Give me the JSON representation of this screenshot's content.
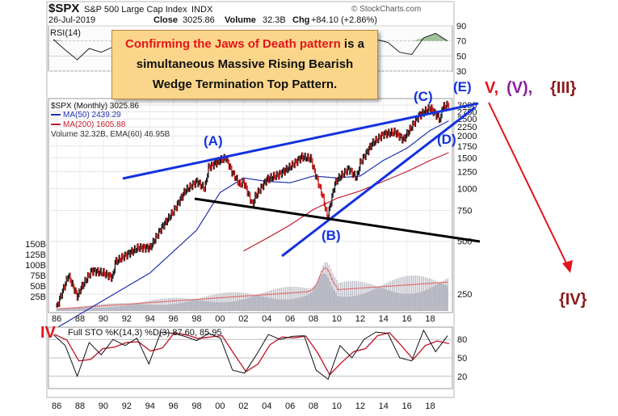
{
  "header": {
    "symbol": "$SPX",
    "name": "S&P 500 Large Cap Index",
    "exchange": "INDX",
    "date": "26-Jul-2019",
    "close_label": "Close",
    "close_value": "3025.86",
    "volume_label": "Volume",
    "volume_value": "32.3B",
    "chg_label": "Chg",
    "chg_value": "+84.10 (+2.86%)",
    "watermark": "© StockCharts.com"
  },
  "callout": {
    "highlight": "Confirming the Jaws of Death pattern",
    "line1_rest": " is a",
    "line2": "simultaneous Massive Rising Bearish",
    "line3": "Wedge Termination Top Pattern."
  },
  "annotations": {
    "A": "(A)",
    "B": "(B)",
    "C": "(C)",
    "D": "(D)",
    "E": "(E)",
    "V": "V,",
    "V_paren": "(V),",
    "III": "{III}",
    "IV_brace": "{IV}",
    "IV": "IV"
  },
  "colors": {
    "wedge_line": "#1432e0",
    "flat_line": "#000000",
    "arrow": "#e3141b",
    "ma50": "#2233aa",
    "ma200": "#c02030",
    "volume": "#b7b7c2",
    "volume_ma": "#e07070",
    "label_blue": "#1432e0",
    "label_red": "#e3141b",
    "label_purple": "#8b1fa0",
    "label_maroon": "#8b1a1a",
    "rsi_fill": "#5a8f4e"
  },
  "chart_data": [
    {
      "type": "line",
      "panel": "RSI",
      "label": "RSI(14)",
      "y_ticks": [
        "90",
        "70",
        "50",
        "30"
      ],
      "ylim": [
        30,
        90
      ],
      "x": [
        "86",
        "87",
        "88",
        "89",
        "90",
        "91",
        "92",
        "93",
        "94",
        "95",
        "96",
        "97",
        "98",
        "99",
        "00",
        "01",
        "02",
        "03",
        "04",
        "05",
        "06",
        "07",
        "08",
        "09",
        "10",
        "11",
        "12",
        "13",
        "14",
        "15",
        "16",
        "17",
        "18",
        "19"
      ],
      "values": [
        72,
        58,
        45,
        60,
        55,
        62,
        58,
        60,
        52,
        70,
        75,
        72,
        74,
        68,
        60,
        45,
        40,
        55,
        62,
        58,
        64,
        62,
        45,
        40,
        58,
        55,
        60,
        72,
        68,
        55,
        52,
        74,
        80,
        70
      ]
    },
    {
      "type": "line",
      "panel": "price",
      "scale": "log",
      "legend": [
        "$SPX (Monthly) 3025.86",
        "MA(50) 2439.29",
        "MA(200) 1605.88",
        "Volume 32.32B, EMA(60) 46.95B"
      ],
      "y_ticks": [
        "3000",
        "2750",
        "2500",
        "2250",
        "2000",
        "1750",
        "1500",
        "1250",
        "1000",
        "750",
        "500",
        "250"
      ],
      "ylim": [
        200,
        3200
      ],
      "volume_ticks": [
        "150B",
        "125B",
        "100B",
        "75B",
        "50B",
        "25B"
      ],
      "x_ticks": [
        "86",
        "88",
        "90",
        "92",
        "94",
        "96",
        "98",
        "00",
        "02",
        "04",
        "06",
        "08",
        "10",
        "12",
        "14",
        "16",
        "18"
      ],
      "series": [
        {
          "name": "$SPX",
          "x": [
            1986,
            1987,
            1987.8,
            1988,
            1989,
            1990,
            1990.8,
            1991,
            1992,
            1993,
            1994,
            1995,
            1996,
            1997,
            1998,
            1998.7,
            1999,
            2000,
            2000.5,
            2001,
            2001.7,
            2002,
            2002.8,
            2003,
            2004,
            2005,
            2006,
            2007,
            2007.8,
            2008,
            2008.8,
            2009.2,
            2009.8,
            2010,
            2011,
            2011.7,
            2012,
            2013,
            2014,
            2015,
            2015.7,
            2016,
            2017,
            2018,
            2018.9,
            2019,
            2019.6
          ],
          "values": [
            210,
            320,
            240,
            265,
            340,
            330,
            310,
            380,
            420,
            460,
            460,
            600,
            740,
            970,
            1100,
            1000,
            1320,
            1450,
            1500,
            1250,
            1050,
            1100,
            800,
            900,
            1130,
            1200,
            1330,
            1520,
            1480,
            1300,
            900,
            680,
            1050,
            1120,
            1300,
            1150,
            1400,
            1800,
            2050,
            2100,
            1900,
            2050,
            2600,
            2900,
            2450,
            2900,
            3025
          ]
        },
        {
          "name": "MA(50)",
          "x": [
            1986,
            1990,
            1994,
            1998,
            2000,
            2002,
            2004,
            2006,
            2008,
            2010,
            2012,
            2014,
            2016,
            2018,
            2019.6
          ],
          "values": [
            160,
            230,
            330,
            580,
            950,
            1150,
            1100,
            1080,
            1180,
            1150,
            1180,
            1450,
            1700,
            2150,
            2440
          ]
        },
        {
          "name": "MA(200)",
          "x": [
            2002,
            2004,
            2006,
            2008,
            2010,
            2012,
            2014,
            2016,
            2018,
            2019.6
          ],
          "values": [
            440,
            520,
            620,
            760,
            880,
            970,
            1100,
            1250,
            1450,
            1606
          ]
        }
      ]
    },
    {
      "type": "line",
      "panel": "STO",
      "label": "Full STO %K(14,3) %D(3) 87.60, 85.95",
      "y_ticks": [
        "80",
        "50",
        "20"
      ],
      "ylim": [
        0,
        100
      ],
      "x": [
        "86",
        "87",
        "88",
        "89",
        "90",
        "91",
        "92",
        "93",
        "94",
        "95",
        "96",
        "97",
        "98",
        "99",
        "00",
        "01",
        "02",
        "03",
        "04",
        "05",
        "06",
        "07",
        "08",
        "09",
        "10",
        "11",
        "12",
        "13",
        "14",
        "15",
        "16",
        "17",
        "18",
        "19"
      ],
      "values": [
        88,
        70,
        20,
        75,
        55,
        80,
        70,
        82,
        40,
        92,
        90,
        85,
        78,
        90,
        82,
        30,
        25,
        55,
        88,
        80,
        85,
        86,
        30,
        15,
        70,
        50,
        80,
        92,
        90,
        50,
        45,
        95,
        60,
        86
      ]
    }
  ]
}
